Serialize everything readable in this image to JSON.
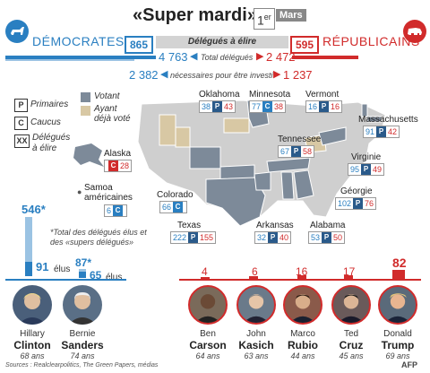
{
  "header": {
    "title": "«Super mardi»",
    "date_day": "1",
    "date_sup": "er",
    "date_month": "Mars"
  },
  "parties": {
    "dem_label": "DÉMOCRATES",
    "rep_label": "RÉPUBLICAINS",
    "dem_count": "865",
    "rep_count": "595",
    "band_label": "Délégués à élire",
    "total_dem": "4 763",
    "total_label": "Total délégués",
    "total_rep": "2 472",
    "need_dem": "2 382",
    "need_label": "nécessaires pour être investi",
    "need_rep": "1 237"
  },
  "legend": {
    "p_key": "P",
    "p_label": "Primaires",
    "c_key": "C",
    "c_label": "Caucus",
    "xx_key": "XX",
    "xx_label_1": "Délégués",
    "xx_label_2": "à élire",
    "votant": "Votant",
    "ayant_1": "Ayant",
    "ayant_2": "déjà voté",
    "colors": {
      "votant": "#7d8a99",
      "ayant": "#d8c8a4",
      "base": "#cfcfcf"
    }
  },
  "states": [
    {
      "name": "Oklahoma",
      "dem": "38",
      "type": "P",
      "rep": "43"
    },
    {
      "name": "Minnesota",
      "dem": "77",
      "type": "C",
      "rep": "38"
    },
    {
      "name": "Vermont",
      "dem": "16",
      "type": "P",
      "rep": "16"
    },
    {
      "name": "Massachusetts",
      "dem": "91",
      "type": "P",
      "rep": "42"
    },
    {
      "name": "Alaska",
      "dem": "",
      "type": "C",
      "rep": "28"
    },
    {
      "name": "Tennessee",
      "dem": "67",
      "type": "P",
      "rep": "58"
    },
    {
      "name": "Virginie",
      "dem": "95",
      "type": "P",
      "rep": "49"
    },
    {
      "name": "Samoa américaines",
      "dem": "6",
      "type": "C",
      "rep": ""
    },
    {
      "name": "Colorado",
      "dem": "66",
      "type": "C",
      "rep": ""
    },
    {
      "name": "Géorgie",
      "dem": "102",
      "type": "P",
      "rep": "76"
    },
    {
      "name": "Texas",
      "dem": "222",
      "type": "P",
      "rep": "155"
    },
    {
      "name": "Arkansas",
      "dem": "32",
      "type": "P",
      "rep": "40"
    },
    {
      "name": "Alabama",
      "dem": "53",
      "type": "P",
      "rep": "50"
    }
  ],
  "samoa_label_1": "Samoa",
  "samoa_label_2": "américaines",
  "notes": {
    "asterisk_note_1": "*Total des délégués élus et",
    "asterisk_note_2": "des «supers délégués»",
    "clinton_super": "546*",
    "sanders_super": "87*",
    "clinton_elus": "91",
    "sanders_elus": "65",
    "elus": "élus"
  },
  "candidates": {
    "dem": [
      {
        "first": "Hillary",
        "last": "Clinton",
        "age": "68 ans"
      },
      {
        "first": "Bernie",
        "last": "Sanders",
        "age": "74 ans"
      }
    ],
    "rep": [
      {
        "first": "Ben",
        "last": "Carson",
        "age": "64 ans",
        "delegates": "4"
      },
      {
        "first": "John",
        "last": "Kasich",
        "age": "63 ans",
        "delegates": "6"
      },
      {
        "first": "Marco",
        "last": "Rubio",
        "age": "44 ans",
        "delegates": "16"
      },
      {
        "first": "Ted",
        "last": "Cruz",
        "age": "45 ans",
        "delegates": "17"
      },
      {
        "first": "Donald",
        "last": "Trump",
        "age": "69 ans",
        "delegates": "82"
      }
    ]
  },
  "footer": {
    "source": "Sources : Realclearpolitics, The Green Papers, médias",
    "agency": "AFP"
  }
}
